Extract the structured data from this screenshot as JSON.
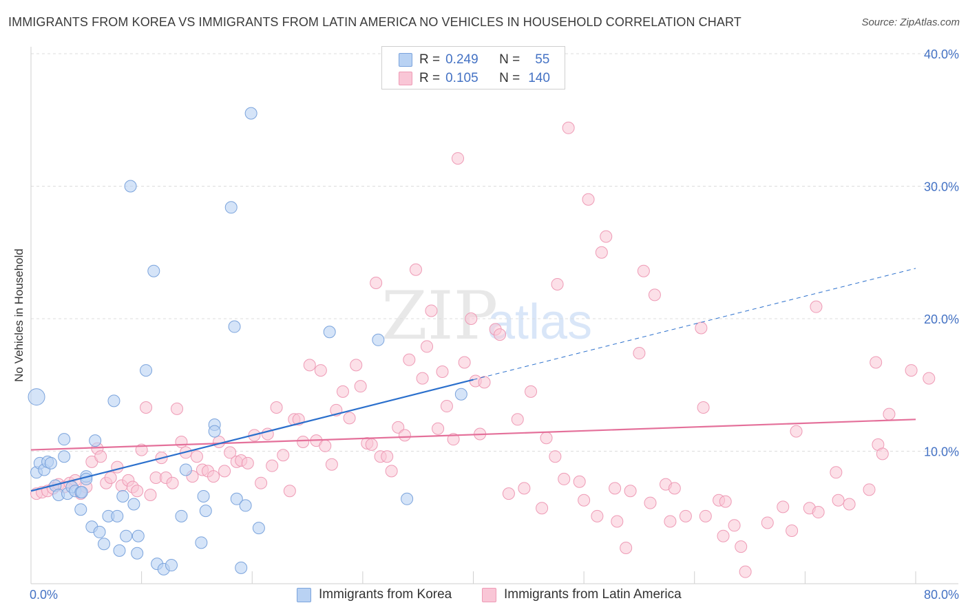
{
  "header": {
    "title": "IMMIGRANTS FROM KOREA VS IMMIGRANTS FROM LATIN AMERICA NO VEHICLES IN HOUSEHOLD CORRELATION CHART",
    "source": "Source: ZipAtlas.com"
  },
  "watermark": {
    "zip": "ZIP",
    "atlas": "atlas"
  },
  "legend_top": {
    "korea": {
      "r_label": "R =",
      "r_value": "0.249",
      "n_label": "N =",
      "n_value": "55"
    },
    "latin": {
      "r_label": "R =",
      "r_value": "0.105",
      "n_label": "N =",
      "n_value": "140"
    }
  },
  "chart_data": {
    "type": "scatter",
    "title": "IMMIGRANTS FROM KOREA VS IMMIGRANTS FROM LATIN AMERICA NO VEHICLES IN HOUSEHOLD CORRELATION CHART",
    "xlabel": "",
    "ylabel": "No Vehicles in Household",
    "xlim": [
      0,
      80
    ],
    "ylim": [
      0,
      40
    ],
    "x_tick_labels": [
      "0.0%",
      "80.0%"
    ],
    "y_ticks": [
      10,
      20,
      30,
      40
    ],
    "y_tick_labels": [
      "10.0%",
      "20.0%",
      "30.0%",
      "40.0%"
    ],
    "grid": true,
    "legend_position": "bottom-center",
    "colors": {
      "korea_fill": "#b9d2f3",
      "korea_stroke": "#7aa3dc",
      "korea_line": "#2a6fcc",
      "latin_fill": "#f9c6d6",
      "latin_stroke": "#ee9ab5",
      "latin_line": "#e4709a",
      "axis_label": "#4472c4"
    },
    "series": [
      {
        "name": "Immigrants from Korea",
        "r": 0.249,
        "n": 55,
        "trend": {
          "x_start": 0,
          "y_start": 7.0,
          "x_solid_end": 40,
          "y_solid_end": 15.4,
          "x_end": 80,
          "y_end": 23.8
        },
        "points": [
          [
            0.5,
            8.4
          ],
          [
            0.8,
            9.1
          ],
          [
            1.2,
            8.6
          ],
          [
            1.5,
            9.2
          ],
          [
            1.8,
            9.1
          ],
          [
            2.2,
            7.4
          ],
          [
            2.5,
            6.7
          ],
          [
            3.0,
            10.9
          ],
          [
            3.0,
            9.6
          ],
          [
            3.3,
            6.8
          ],
          [
            3.7,
            7.3
          ],
          [
            4.0,
            7.0
          ],
          [
            4.5,
            5.6
          ],
          [
            4.5,
            6.9
          ],
          [
            4.6,
            6.9
          ],
          [
            5.0,
            8.1
          ],
          [
            5.0,
            7.9
          ],
          [
            5.5,
            4.3
          ],
          [
            5.8,
            10.8
          ],
          [
            6.2,
            3.9
          ],
          [
            6.6,
            3.0
          ],
          [
            7.0,
            5.1
          ],
          [
            7.5,
            13.8
          ],
          [
            7.8,
            5.1
          ],
          [
            8.0,
            2.5
          ],
          [
            8.3,
            6.6
          ],
          [
            8.6,
            3.6
          ],
          [
            9.0,
            30.0
          ],
          [
            9.3,
            6.0
          ],
          [
            9.6,
            2.3
          ],
          [
            9.7,
            3.6
          ],
          [
            10.4,
            16.1
          ],
          [
            11.1,
            23.6
          ],
          [
            11.4,
            1.5
          ],
          [
            12.0,
            1.1
          ],
          [
            12.7,
            1.4
          ],
          [
            13.6,
            5.1
          ],
          [
            14.0,
            8.6
          ],
          [
            15.4,
            3.1
          ],
          [
            15.6,
            6.6
          ],
          [
            15.8,
            5.5
          ],
          [
            16.6,
            12.0
          ],
          [
            16.6,
            11.5
          ],
          [
            18.1,
            28.4
          ],
          [
            18.4,
            19.4
          ],
          [
            18.6,
            6.4
          ],
          [
            19.0,
            1.2
          ],
          [
            19.4,
            5.9
          ],
          [
            19.9,
            35.5
          ],
          [
            20.6,
            4.2
          ],
          [
            27.0,
            19.0
          ],
          [
            31.4,
            18.4
          ],
          [
            34.0,
            6.4
          ],
          [
            38.9,
            14.3
          ],
          [
            0.5,
            14.1
          ]
        ]
      },
      {
        "name": "Immigrants from Latin America",
        "r": 0.105,
        "n": 140,
        "trend": {
          "x_start": 0,
          "y_start": 10.1,
          "x_end": 80,
          "y_end": 12.4
        },
        "points": [
          [
            0.5,
            6.8
          ],
          [
            1.0,
            6.9
          ],
          [
            1.5,
            7.0
          ],
          [
            2.0,
            7.2
          ],
          [
            2.5,
            7.5
          ],
          [
            3.0,
            7.3
          ],
          [
            3.5,
            7.6
          ],
          [
            4.0,
            7.8
          ],
          [
            4.5,
            6.8
          ],
          [
            5.0,
            7.3
          ],
          [
            5.5,
            9.2
          ],
          [
            6.0,
            10.2
          ],
          [
            6.3,
            9.6
          ],
          [
            6.8,
            7.6
          ],
          [
            7.2,
            8.0
          ],
          [
            7.8,
            8.8
          ],
          [
            8.2,
            7.4
          ],
          [
            8.8,
            7.8
          ],
          [
            9.2,
            7.3
          ],
          [
            9.6,
            7.0
          ],
          [
            10.0,
            10.1
          ],
          [
            10.4,
            13.3
          ],
          [
            10.8,
            6.7
          ],
          [
            11.3,
            8.0
          ],
          [
            11.8,
            9.5
          ],
          [
            12.2,
            8.0
          ],
          [
            12.8,
            7.6
          ],
          [
            13.2,
            13.2
          ],
          [
            13.6,
            10.7
          ],
          [
            14.0,
            9.9
          ],
          [
            14.6,
            8.1
          ],
          [
            15.0,
            9.6
          ],
          [
            15.5,
            8.6
          ],
          [
            16.0,
            8.5
          ],
          [
            16.5,
            8.1
          ],
          [
            17.0,
            10.7
          ],
          [
            17.5,
            8.5
          ],
          [
            18.0,
            9.9
          ],
          [
            18.6,
            9.2
          ],
          [
            19.0,
            9.3
          ],
          [
            19.6,
            9.1
          ],
          [
            20.2,
            11.2
          ],
          [
            20.8,
            7.6
          ],
          [
            21.4,
            11.3
          ],
          [
            21.8,
            8.9
          ],
          [
            22.2,
            13.3
          ],
          [
            22.8,
            9.7
          ],
          [
            23.4,
            7.0
          ],
          [
            23.8,
            12.4
          ],
          [
            24.2,
            12.4
          ],
          [
            24.6,
            10.7
          ],
          [
            25.2,
            16.5
          ],
          [
            25.8,
            10.8
          ],
          [
            26.2,
            16.1
          ],
          [
            26.6,
            10.4
          ],
          [
            27.2,
            9.0
          ],
          [
            27.6,
            13.1
          ],
          [
            28.2,
            14.5
          ],
          [
            28.8,
            12.5
          ],
          [
            29.4,
            16.5
          ],
          [
            29.8,
            14.9
          ],
          [
            30.4,
            10.6
          ],
          [
            30.8,
            10.5
          ],
          [
            31.2,
            22.7
          ],
          [
            31.6,
            9.6
          ],
          [
            32.2,
            9.6
          ],
          [
            32.6,
            8.5
          ],
          [
            33.2,
            11.8
          ],
          [
            33.8,
            11.2
          ],
          [
            34.2,
            16.9
          ],
          [
            34.8,
            23.7
          ],
          [
            35.4,
            15.5
          ],
          [
            35.8,
            17.9
          ],
          [
            36.2,
            20.6
          ],
          [
            36.8,
            11.7
          ],
          [
            37.2,
            16.0
          ],
          [
            37.6,
            13.4
          ],
          [
            38.2,
            10.9
          ],
          [
            38.6,
            32.1
          ],
          [
            39.2,
            16.7
          ],
          [
            39.8,
            20.0
          ],
          [
            40.2,
            15.3
          ],
          [
            40.6,
            11.3
          ],
          [
            41.0,
            15.2
          ],
          [
            42.0,
            19.2
          ],
          [
            42.4,
            18.8
          ],
          [
            43.2,
            6.8
          ],
          [
            44.0,
            12.4
          ],
          [
            44.6,
            7.2
          ],
          [
            45.2,
            14.5
          ],
          [
            46.2,
            5.7
          ],
          [
            46.6,
            11.0
          ],
          [
            47.4,
            9.6
          ],
          [
            47.6,
            22.6
          ],
          [
            48.2,
            7.9
          ],
          [
            48.6,
            34.4
          ],
          [
            49.6,
            7.7
          ],
          [
            50.0,
            6.3
          ],
          [
            50.4,
            29.0
          ],
          [
            51.2,
            5.1
          ],
          [
            51.6,
            25.0
          ],
          [
            52.0,
            26.2
          ],
          [
            52.8,
            7.2
          ],
          [
            53.0,
            4.7
          ],
          [
            53.8,
            2.7
          ],
          [
            54.2,
            7.0
          ],
          [
            55.0,
            17.4
          ],
          [
            55.4,
            23.6
          ],
          [
            56.0,
            6.1
          ],
          [
            56.4,
            21.8
          ],
          [
            57.4,
            7.5
          ],
          [
            57.8,
            4.7
          ],
          [
            58.2,
            7.2
          ],
          [
            59.2,
            5.1
          ],
          [
            60.6,
            19.3
          ],
          [
            60.8,
            13.3
          ],
          [
            61.0,
            5.1
          ],
          [
            62.2,
            6.3
          ],
          [
            62.6,
            3.6
          ],
          [
            62.8,
            6.2
          ],
          [
            63.6,
            4.4
          ],
          [
            64.2,
            2.8
          ],
          [
            64.6,
            0.9
          ],
          [
            66.6,
            4.6
          ],
          [
            68.0,
            5.8
          ],
          [
            68.8,
            4.0
          ],
          [
            69.2,
            11.5
          ],
          [
            70.4,
            5.7
          ],
          [
            71.0,
            20.9
          ],
          [
            71.2,
            5.4
          ],
          [
            72.8,
            8.4
          ],
          [
            73.0,
            6.3
          ],
          [
            74.0,
            6.0
          ],
          [
            75.8,
            7.1
          ],
          [
            76.4,
            16.7
          ],
          [
            76.6,
            10.5
          ],
          [
            77.0,
            9.8
          ],
          [
            77.6,
            12.8
          ],
          [
            79.6,
            16.1
          ],
          [
            81.2,
            15.5
          ]
        ]
      }
    ]
  },
  "legend_bottom": {
    "korea_label": "Immigrants from Korea",
    "latin_label": "Immigrants from Latin America"
  }
}
